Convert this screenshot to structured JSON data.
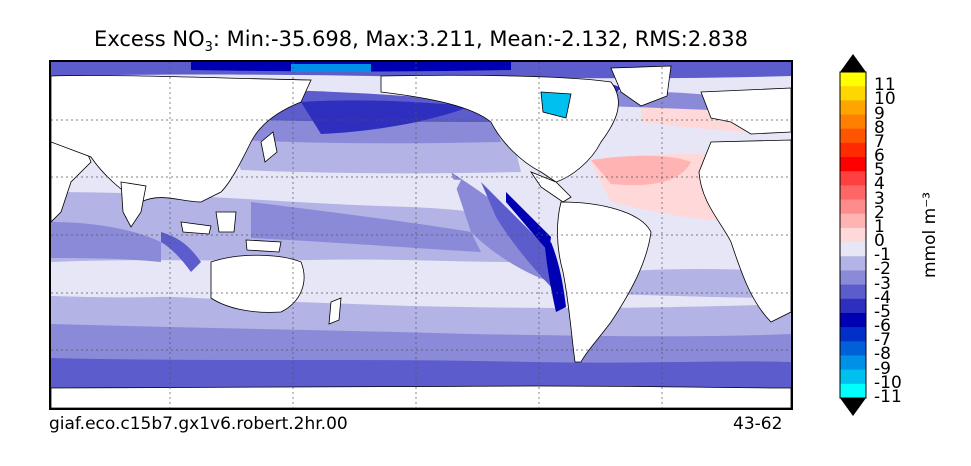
{
  "title": {
    "prefix": "Excess NO",
    "subscript": "3",
    "suffix": ": Min:-35.698, Max:3.211, Mean:-2.132, RMS:2.838"
  },
  "footer": {
    "case_name": "giaf.eco.c15b7.gx1v6.robert.2hr.00",
    "years": "43-62"
  },
  "colorbar": {
    "unit_label": "mmol m⁻³",
    "extend": "both",
    "ticks": [
      "11",
      "10",
      "9",
      "8",
      "7",
      "6",
      "5",
      "4",
      "3",
      "2",
      "1",
      "0",
      "-1",
      "-2",
      "-3",
      "-4",
      "-5",
      "-6",
      "-7",
      "-8",
      "-9",
      "-10",
      "-11"
    ],
    "colors": [
      "#ffff00",
      "#ffd700",
      "#ffa500",
      "#ff7f00",
      "#ff5500",
      "#ff2a00",
      "#ff0000",
      "#ff4040",
      "#ff6666",
      "#ff8c8c",
      "#ffb3b3",
      "#ffd9d9",
      "#e6e6f6",
      "#b3b3e6",
      "#8a8ad9",
      "#5c5ccc",
      "#2e2ebf",
      "#0000b3",
      "#0030c8",
      "#0060d8",
      "#0090e8",
      "#00c0f0",
      "#00ffff"
    ]
  },
  "map": {
    "ocean_color": "#e6e6f6",
    "land_color": "#ffffff",
    "projection": "cylindrical, Pacific-centred",
    "gridlines": "dotted"
  }
}
